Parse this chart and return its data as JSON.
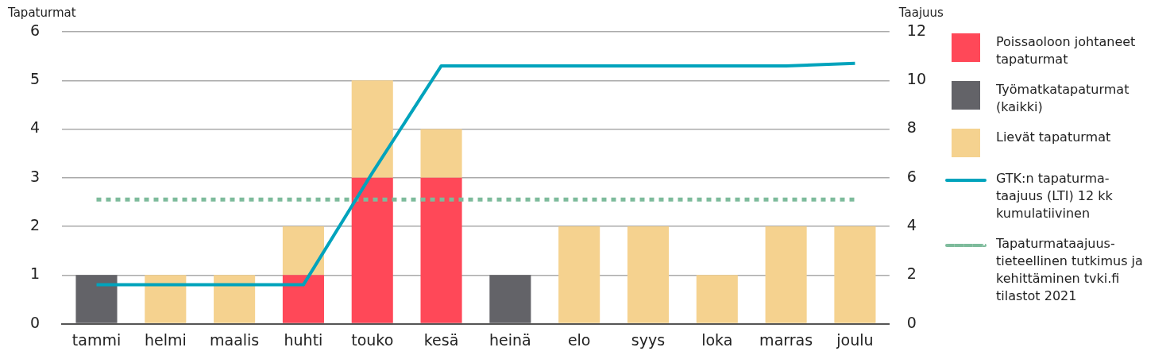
{
  "chart_data": {
    "type": "bar",
    "stacked": true,
    "ylabel": "Tapaturmat",
    "y2label": "Taajuus",
    "categories": [
      "tammi",
      "helmi",
      "maalis",
      "huhti",
      "touko",
      "kesä",
      "heinä",
      "elo",
      "syys",
      "loka",
      "marras",
      "joulu"
    ],
    "series": [
      {
        "name": "Poissaoloon johtaneet tapaturmat",
        "color": "#ff4858",
        "values": [
          0,
          0,
          0,
          1,
          3,
          3,
          0,
          0,
          0,
          0,
          0,
          0
        ]
      },
      {
        "name": "Työmatkatapaturmat (kaikki)",
        "color": "#636368",
        "values": [
          1,
          0,
          0,
          0,
          0,
          0,
          1,
          0,
          0,
          0,
          0,
          0
        ]
      },
      {
        "name": "Lievät tapaturmat",
        "color": "#f5d28f",
        "values": [
          0,
          1,
          1,
          1,
          2,
          1,
          0,
          2,
          2,
          1,
          2,
          2
        ]
      },
      {
        "name": "GTK:n tapaturma-taajuus (LTI) 12 kk kumulatiivinen",
        "type": "line",
        "axis": "y2",
        "color": "#00a3bc",
        "line_style": "solid",
        "values": [
          1.6,
          1.6,
          1.6,
          1.6,
          6.2,
          10.6,
          10.6,
          10.6,
          10.6,
          10.6,
          10.6,
          10.7
        ]
      },
      {
        "name": "Tapaturmataajuus-tieteellinen tutkimus ja kehittäminen tvki.fi tilastot 2021",
        "type": "line",
        "axis": "y2",
        "color": "#7dbb9b",
        "line_style": "dotted",
        "values": [
          5.1,
          5.1,
          5.1,
          5.1,
          5.1,
          5.1,
          5.1,
          5.1,
          5.1,
          5.1,
          5.1,
          5.1
        ]
      }
    ],
    "ylim": [
      0,
      6
    ],
    "yticks": [
      0,
      1,
      2,
      3,
      4,
      5,
      6
    ],
    "y2lim": [
      0,
      12
    ],
    "y2ticks": [
      0,
      2,
      4,
      6,
      8,
      10,
      12
    ],
    "grid": "y",
    "legend": "right",
    "marker": "none"
  }
}
